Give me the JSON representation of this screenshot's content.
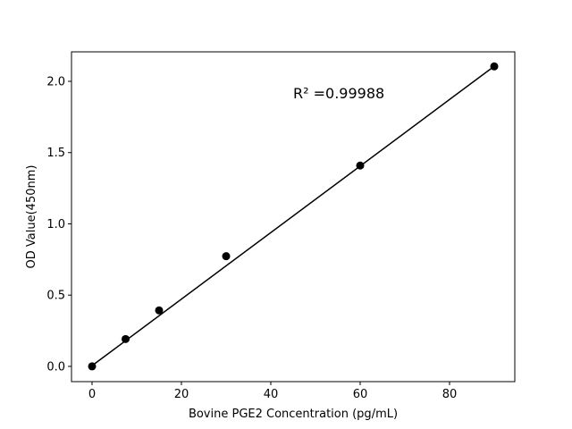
{
  "chart_data": {
    "type": "scatter",
    "title": "",
    "xlabel": "Bovine PGE2 Concentration (pg/mL)",
    "ylabel": "OD Value(450nm)",
    "xlim": [
      -4.6,
      94.6
    ],
    "ylim": [
      -0.107,
      2.207
    ],
    "xticks": [
      0,
      20,
      40,
      60,
      80
    ],
    "yticks": [
      0.0,
      0.5,
      1.0,
      1.5,
      2.0
    ],
    "xtick_labels": [
      "0",
      "20",
      "40",
      "60",
      "80"
    ],
    "ytick_labels": [
      "0.0",
      "0.5",
      "1.0",
      "1.5",
      "2.0"
    ],
    "grid": false,
    "points": {
      "x": [
        0,
        7.5,
        15,
        30,
        60,
        90
      ],
      "y": [
        0.0,
        0.192,
        0.393,
        0.773,
        1.409,
        2.105
      ]
    },
    "fit_line": {
      "x": [
        0,
        90
      ],
      "y": [
        0.005,
        2.106
      ]
    },
    "annotation": "R² =0.99988",
    "annotation_position": {
      "x": 45,
      "y": 1.88
    },
    "color": "#000000"
  }
}
